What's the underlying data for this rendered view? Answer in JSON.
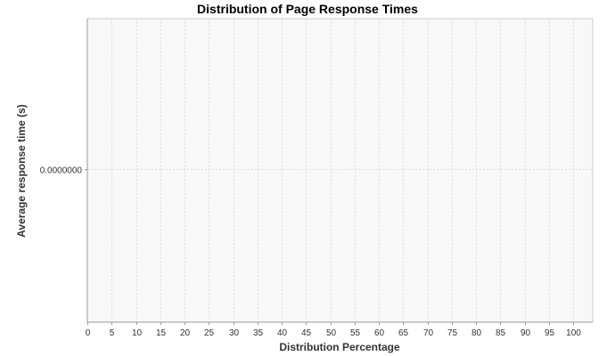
{
  "chart_data": {
    "type": "line",
    "title": "Distribution of Page Response Times",
    "xlabel": "Distribution Percentage",
    "ylabel": "Average response time (s)",
    "xlim": [
      0,
      104
    ],
    "x_ticks": [
      0,
      5,
      10,
      15,
      20,
      25,
      30,
      35,
      40,
      45,
      50,
      55,
      60,
      65,
      70,
      75,
      80,
      85,
      90,
      95,
      100
    ],
    "y_ticks": [
      0
    ],
    "y_tick_labels": [
      "0.0000000"
    ],
    "series": [],
    "grid": true,
    "colors": {
      "plot_background": "#f8f8f8",
      "gridline": "#dddddd",
      "axis": "#999999",
      "border": "#cccccc"
    }
  }
}
